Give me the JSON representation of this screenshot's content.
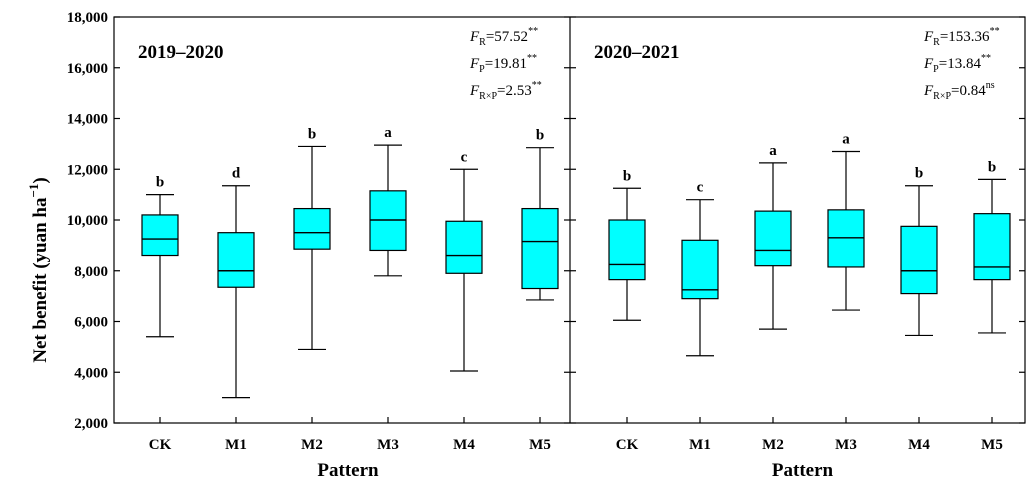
{
  "chart_data": {
    "type": "box",
    "ylabel_main": "Net benefit (yuan ha",
    "ylabel_sup": "−1",
    "ylabel_close": ")",
    "xlabel": "Pattern",
    "ylim": [
      2000,
      18000
    ],
    "yticks": [
      2000,
      4000,
      6000,
      8000,
      10000,
      12000,
      14000,
      16000,
      18000
    ],
    "ytick_labels": [
      "2,000",
      "4,000",
      "6,000",
      "8,000",
      "10,000",
      "12,000",
      "14,000",
      "16,000",
      "18,000"
    ],
    "categories": [
      "CK",
      "M1",
      "M2",
      "M3",
      "M4",
      "M5"
    ],
    "box_color": "#00FFFF",
    "panels": [
      {
        "title": "2019–2020",
        "boxes": [
          {
            "min": 5400,
            "q1": 8600,
            "median": 9250,
            "q3": 10200,
            "max": 11000,
            "letter": "b"
          },
          {
            "min": 3000,
            "q1": 7350,
            "median": 8000,
            "q3": 9500,
            "max": 11350,
            "letter": "d"
          },
          {
            "min": 4900,
            "q1": 8850,
            "median": 9500,
            "q3": 10450,
            "max": 12900,
            "letter": "b"
          },
          {
            "min": 7800,
            "q1": 8800,
            "median": 10000,
            "q3": 11150,
            "max": 12950,
            "letter": "a"
          },
          {
            "min": 4050,
            "q1": 7900,
            "median": 8600,
            "q3": 9950,
            "max": 12000,
            "letter": "c"
          },
          {
            "min": 6850,
            "q1": 7300,
            "median": 9150,
            "q3": 10450,
            "max": 12850,
            "letter": "b"
          }
        ],
        "stats": [
          {
            "sym": "F",
            "sub": "R",
            "eq": "=57.52",
            "sup": "**"
          },
          {
            "sym": "F",
            "sub": "P",
            "eq": "=19.81",
            "sup": "**"
          },
          {
            "sym": "F",
            "sub": "R×P",
            "eq": "=2.53",
            "sup": "**"
          }
        ]
      },
      {
        "title": "2020–2021",
        "boxes": [
          {
            "min": 6050,
            "q1": 7650,
            "median": 8250,
            "q3": 10000,
            "max": 11250,
            "letter": "b"
          },
          {
            "min": 4650,
            "q1": 6900,
            "median": 7250,
            "q3": 9200,
            "max": 10800,
            "letter": "c"
          },
          {
            "min": 5700,
            "q1": 8200,
            "median": 8800,
            "q3": 10350,
            "max": 12250,
            "letter": "a"
          },
          {
            "min": 6450,
            "q1": 8150,
            "median": 9300,
            "q3": 10400,
            "max": 12700,
            "letter": "a"
          },
          {
            "min": 5450,
            "q1": 7100,
            "median": 8000,
            "q3": 9750,
            "max": 11350,
            "letter": "b"
          },
          {
            "min": 5550,
            "q1": 7650,
            "median": 8150,
            "q3": 10250,
            "max": 11600,
            "letter": "b"
          }
        ],
        "stats": [
          {
            "sym": "F",
            "sub": "R",
            "eq": "=153.36",
            "sup": "**"
          },
          {
            "sym": "F",
            "sub": "P",
            "eq": "=13.84",
            "sup": "**"
          },
          {
            "sym": "F",
            "sub": "R×P",
            "eq": "=0.84",
            "sup": "ns"
          }
        ]
      }
    ]
  }
}
